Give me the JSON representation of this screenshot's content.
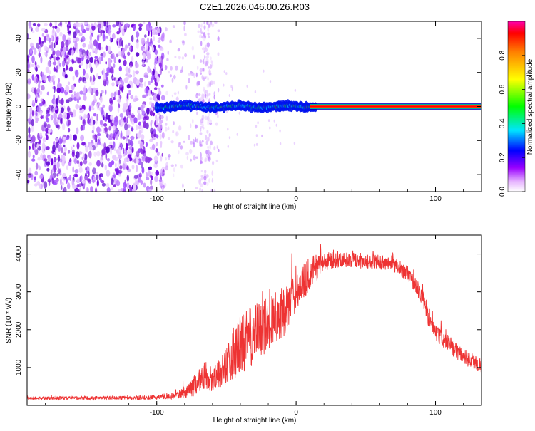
{
  "title": "C2E1.2026.046.00.26.R03",
  "colors": {
    "snr_line": "#ee3333",
    "axis": "#000000",
    "background": "#ffffff"
  },
  "chart_data": [
    {
      "type": "heatmap",
      "xlabel": "Height of straight line (km)",
      "ylabel": "Frequency (Hz)",
      "xlim": [
        -193,
        133
      ],
      "ylim": [
        -50,
        50
      ],
      "x_ticks": [
        -100,
        0,
        100
      ],
      "x_tick_labels": [
        "-100",
        "0",
        "100"
      ],
      "y_ticks": [
        -40,
        -20,
        0,
        20,
        40
      ],
      "y_tick_labels": [
        "-40",
        "-20",
        "0",
        "20",
        "40"
      ],
      "colorbar": {
        "label": "Normalized spectral amplitude",
        "ticks": [
          0.0,
          0.2,
          0.4,
          0.6,
          0.8
        ],
        "tick_labels": [
          "0.0",
          "0.2",
          "0.4",
          "0.6",
          "0.8"
        ],
        "range": [
          0,
          1
        ],
        "colormap": "rainbow"
      },
      "features": {
        "noise_region_x": [
          -193,
          -95
        ],
        "sparse_noise_x": [
          -95,
          -55
        ],
        "signal_line_frequency_hz": 0,
        "signal_line_start_x": -100,
        "strong_line_start_x": 10,
        "signal_line_end_x": 133
      }
    },
    {
      "type": "line",
      "xlabel": "Height of straight line (km)",
      "ylabel": "SNR (10 * v/v)",
      "xlim": [
        -193,
        133
      ],
      "ylim": [
        0,
        4500
      ],
      "x_ticks": [
        -100,
        0,
        100
      ],
      "x_tick_labels": [
        "-100",
        "0",
        "100"
      ],
      "y_ticks": [
        1000,
        2000,
        3000,
        4000
      ],
      "y_tick_labels": [
        "1000",
        "2000",
        "3000",
        "4000"
      ],
      "series": [
        {
          "name": "SNR",
          "envelope_x": [
            -193,
            -110,
            -95,
            -85,
            -75,
            -68,
            -60,
            -52,
            -45,
            -38,
            -30,
            -22,
            -15,
            -8,
            0,
            10,
            20,
            30,
            40,
            50,
            60,
            70,
            80,
            90,
            95,
            100,
            110,
            120,
            133
          ],
          "envelope_y": [
            190,
            200,
            220,
            260,
            450,
            750,
            650,
            950,
            1400,
            1650,
            1850,
            2100,
            2350,
            2500,
            3000,
            3500,
            3800,
            3850,
            3850,
            3800,
            3800,
            3700,
            3500,
            2900,
            2300,
            1900,
            1600,
            1300,
            1050
          ],
          "noise_amplitude": [
            40,
            50,
            60,
            90,
            250,
            350,
            300,
            450,
            700,
            800,
            800,
            750,
            700,
            650,
            500,
            450,
            250,
            200,
            200,
            200,
            200,
            200,
            200,
            220,
            220,
            220,
            230,
            220,
            200
          ]
        }
      ]
    }
  ]
}
